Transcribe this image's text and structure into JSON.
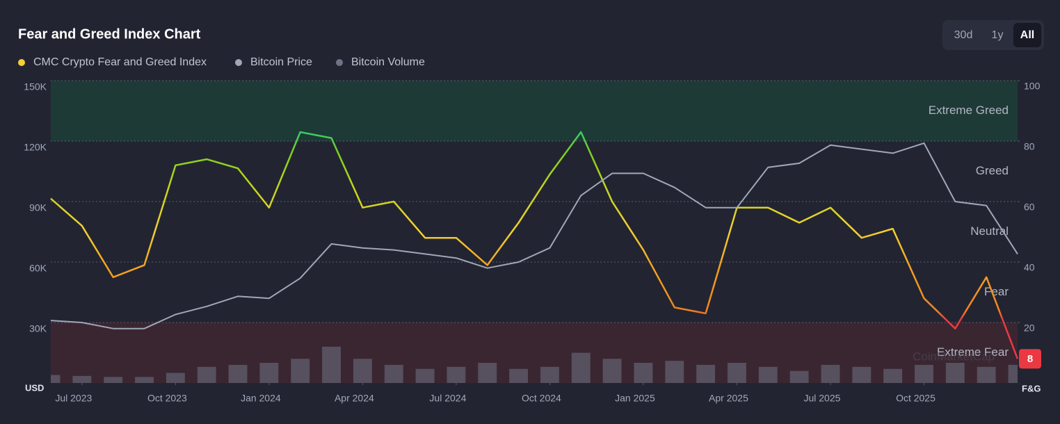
{
  "controls": {
    "buttons": [
      "30d",
      "1y",
      "All"
    ],
    "active": 2
  },
  "chart_data": {
    "type": "line",
    "title": "Fear and Greed Index Chart",
    "x": [
      "2023-06",
      "2023-07",
      "2023-08",
      "2023-09",
      "2023-10",
      "2023-11",
      "2023-12",
      "2024-01",
      "2024-02",
      "2024-03",
      "2024-04",
      "2024-05",
      "2024-06",
      "2024-07",
      "2024-08",
      "2024-09",
      "2024-10",
      "2024-11",
      "2024-12",
      "2025-01",
      "2025-02",
      "2025-03",
      "2025-04",
      "2025-05",
      "2025-06",
      "2025-07",
      "2025-08",
      "2025-09",
      "2025-10",
      "2025-11",
      "2025-12",
      "2026-01"
    ],
    "xlim": [
      "2023-06",
      "2026-01"
    ],
    "xticks": [
      {
        "value": "2023-07",
        "label": "Jul 2023"
      },
      {
        "value": "2023-10",
        "label": "Oct 2023"
      },
      {
        "value": "2024-01",
        "label": "Jan 2024"
      },
      {
        "value": "2024-04",
        "label": "Apr 2024"
      },
      {
        "value": "2024-07",
        "label": "Jul 2024"
      },
      {
        "value": "2024-10",
        "label": "Oct 2024"
      },
      {
        "value": "2025-01",
        "label": "Jan 2025"
      },
      {
        "value": "2025-04",
        "label": "Apr 2025"
      },
      {
        "value": "2025-07",
        "label": "Jul 2025"
      },
      {
        "value": "2025-10",
        "label": "Oct 2025"
      }
    ],
    "y_label": "USD",
    "y2_label": "F&G",
    "ylim": [
      0,
      150000
    ],
    "yticks": [
      {
        "value": 30000,
        "label": "30K"
      },
      {
        "value": 60000,
        "label": "60K"
      },
      {
        "value": 90000,
        "label": "90K"
      },
      {
        "value": 120000,
        "label": "120K"
      },
      {
        "value": 150000,
        "label": "150K"
      }
    ],
    "y2lim": [
      0,
      100
    ],
    "y2ticks": [
      20,
      40,
      60,
      80,
      100
    ],
    "grid": true,
    "series": [
      {
        "name": "CMC Crypto Fear and Greed Index",
        "color": "#f5d033",
        "axis": "y2",
        "values": [
          61,
          52,
          35,
          39,
          72,
          74,
          71,
          58,
          83,
          81,
          58,
          60,
          48,
          48,
          39,
          53,
          69,
          83,
          60,
          44,
          25,
          23,
          58,
          58,
          53,
          58,
          48,
          51,
          28,
          18,
          35,
          8
        ]
      },
      {
        "name": "Bitcoin Price",
        "color": "#a1a7bb",
        "values": [
          31000,
          30000,
          27000,
          27000,
          34000,
          38000,
          43000,
          42000,
          52000,
          69000,
          67000,
          66000,
          64000,
          62000,
          57000,
          60000,
          67000,
          93000,
          104000,
          104000,
          97000,
          87000,
          87000,
          107000,
          109000,
          118000,
          116000,
          114000,
          119000,
          90000,
          88000,
          64000
        ]
      },
      {
        "name": "Bitcoin Volume",
        "color": "#6e7385",
        "type": "bar",
        "values": [
          4000,
          3500,
          3000,
          3000,
          5000,
          8000,
          9000,
          10000,
          12000,
          18000,
          12000,
          9000,
          7000,
          8000,
          10000,
          7000,
          8000,
          15000,
          12000,
          10000,
          11000,
          9000,
          10000,
          8000,
          6000,
          9000,
          8000,
          7000,
          9000,
          10000,
          8000,
          9000
        ]
      }
    ],
    "color_stops": [
      {
        "value": 0,
        "color": "#ea3943"
      },
      {
        "value": 21,
        "color": "#ea3943"
      },
      {
        "value": 24,
        "color": "#f3841f"
      },
      {
        "value": 40,
        "color": "#f5a623"
      },
      {
        "value": 50,
        "color": "#f5d033"
      },
      {
        "value": 65,
        "color": "#c2d61c"
      },
      {
        "value": 76,
        "color": "#7fd01e"
      },
      {
        "value": 86,
        "color": "#16c784"
      },
      {
        "value": 100,
        "color": "#16c784"
      }
    ],
    "bands": [
      {
        "from": 80,
        "to": 100,
        "color": "#1d3a37"
      },
      {
        "from": 0,
        "to": 20,
        "color": "#3a2631"
      }
    ],
    "zone_labels": [
      {
        "label": "Extreme Greed",
        "value": 90
      },
      {
        "label": "Greed",
        "value": 70
      },
      {
        "label": "Neutral",
        "value": 50
      },
      {
        "label": "Fear",
        "value": 30
      },
      {
        "label": "Extreme Fear",
        "value": 10
      }
    ],
    "watermark": "CoinMarketCap"
  }
}
